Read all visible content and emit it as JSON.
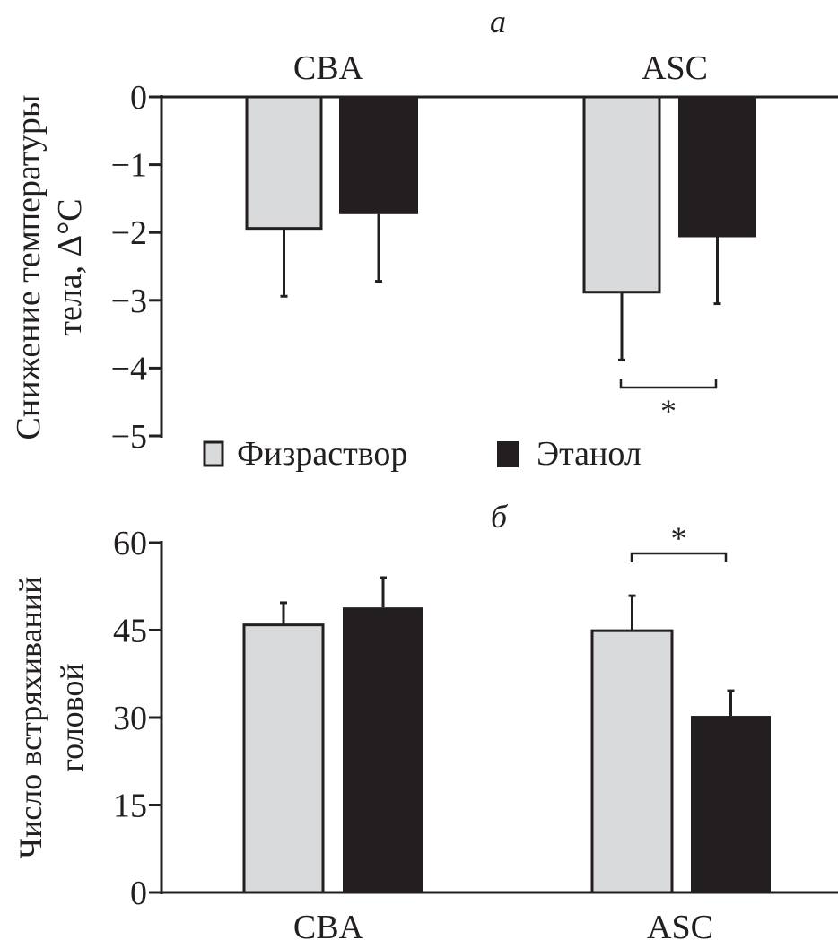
{
  "colors": {
    "saline": "#d9dadc",
    "ethanol": "#231f20",
    "axis": "#231f20"
  },
  "legend": {
    "saline": "Физраствор",
    "ethanol": "Этанол"
  },
  "chart_data": [
    {
      "type": "bar",
      "panel_label": "а",
      "ylabel_line1": "Снижение температуры",
      "ylabel_line2": "тела, Δ°C",
      "categories": [
        "CBA",
        "ASC"
      ],
      "category_position": "top",
      "ylim": [
        -5,
        0
      ],
      "yticks": [
        "0",
        "−1",
        "−2",
        "−3",
        "−4",
        "−5"
      ],
      "ytick_values": [
        0,
        -1,
        -2,
        -3,
        -4,
        -5
      ],
      "grid": false,
      "legend_placement": "bottom",
      "series": [
        {
          "name": "Физраствор",
          "values": [
            -1.94,
            -2.88
          ],
          "errors": [
            1.0,
            1.0
          ]
        },
        {
          "name": "Этанол",
          "values": [
            -1.73,
            -2.07
          ],
          "errors": [
            0.99,
            0.98
          ]
        }
      ],
      "annotations": [
        {
          "text": "*",
          "category": "ASC",
          "compares": [
            "Физраствор",
            "Этанол"
          ]
        }
      ]
    },
    {
      "type": "bar",
      "panel_label": "б",
      "ylabel_line1": "Число встряхиваний",
      "ylabel_line2": "головой",
      "categories": [
        "CBA",
        "ASC"
      ],
      "category_position": "bottom",
      "ylim": [
        0,
        60
      ],
      "yticks": [
        "60",
        "45",
        "30",
        "15",
        "0"
      ],
      "ytick_values": [
        60,
        45,
        30,
        15,
        0
      ],
      "grid": false,
      "series": [
        {
          "name": "Физраствор",
          "values": [
            45.9,
            44.9
          ],
          "errors": [
            3.8,
            6.0
          ]
        },
        {
          "name": "Этанол",
          "values": [
            48.9,
            30.3
          ],
          "errors": [
            5.1,
            4.3
          ]
        }
      ],
      "annotations": [
        {
          "text": "*",
          "category": "ASC",
          "compares": [
            "Физраствор",
            "Этанол"
          ]
        }
      ]
    }
  ]
}
